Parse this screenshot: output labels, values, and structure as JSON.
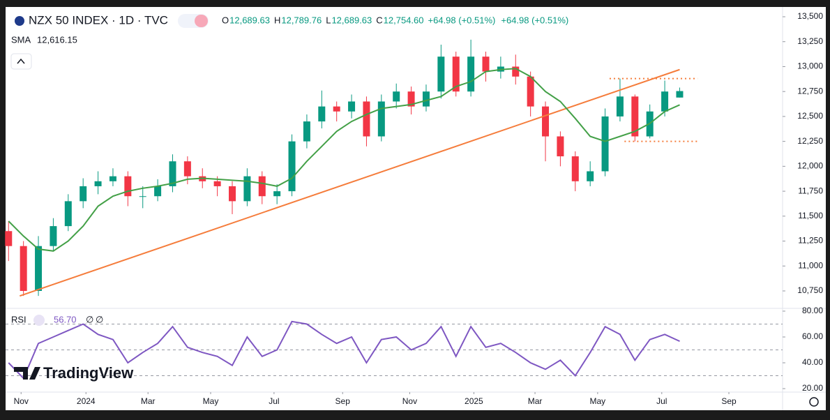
{
  "watermark": "TradingView",
  "chart_data": [
    {
      "type": "candlestick",
      "title": "NZX 50 INDEX · 1D · TVC",
      "ohlc_legend": [
        {
          "key": "O",
          "value": "12,689.63"
        },
        {
          "key": "H",
          "value": "12,789.76"
        },
        {
          "key": "L",
          "value": "12,689.63"
        },
        {
          "key": "C",
          "value": "12,754.60"
        }
      ],
      "change": [
        "+64.98 (+0.51%)",
        "+64.98 (+0.51%)"
      ],
      "categories": [
        null,
        null,
        null,
        null,
        null,
        null,
        null,
        null,
        null,
        null,
        null,
        null,
        null,
        null,
        null,
        null,
        null,
        null,
        null,
        null,
        null,
        null,
        null,
        null,
        null,
        null,
        null,
        null,
        null,
        null,
        null,
        null,
        null,
        null,
        null,
        null,
        null,
        null,
        null,
        null,
        null,
        null,
        null,
        null,
        null,
        null
      ],
      "open": [
        11350,
        11200,
        10750,
        11200,
        11400,
        11650,
        11800,
        11850,
        11900,
        11700,
        11700,
        11800,
        12050,
        11900,
        11850,
        11800,
        11650,
        11900,
        11700,
        11750,
        12250,
        12450,
        12600,
        12550,
        12650,
        12300,
        12650,
        12750,
        12600,
        12750,
        13100,
        12750,
        13100,
        12950,
        13000,
        12900,
        12600,
        12300,
        12100,
        11850,
        11950,
        12500,
        12700,
        12300,
        12550,
        12689.63
      ],
      "high": [
        11450,
        11250,
        11300,
        11480,
        11720,
        11880,
        11950,
        11980,
        11950,
        11800,
        11870,
        12120,
        12100,
        11980,
        11900,
        11850,
        11980,
        11950,
        11820,
        12320,
        12520,
        12760,
        12650,
        12720,
        12700,
        12720,
        12830,
        12800,
        12820,
        13220,
        13150,
        13270,
        13150,
        13100,
        13120,
        12950,
        12650,
        12350,
        12150,
        12050,
        12580,
        12880,
        12720,
        12620,
        12860,
        12789.76
      ],
      "low": [
        11050,
        10700,
        10700,
        11150,
        11350,
        11580,
        11720,
        11800,
        11600,
        11580,
        11650,
        11740,
        11820,
        11780,
        11700,
        11520,
        11600,
        11620,
        11620,
        11700,
        12180,
        12380,
        12450,
        12480,
        12200,
        12250,
        12580,
        12520,
        12550,
        12680,
        12700,
        12700,
        12850,
        12880,
        12820,
        12500,
        12050,
        12000,
        11750,
        11800,
        11900,
        12450,
        12250,
        12280,
        12500,
        12689.63
      ],
      "close": [
        11200,
        10750,
        11200,
        11400,
        11650,
        11800,
        11850,
        11900,
        11700,
        11700,
        11800,
        12050,
        11900,
        11850,
        11800,
        11650,
        11900,
        11700,
        11750,
        12250,
        12450,
        12600,
        12550,
        12650,
        12300,
        12650,
        12750,
        12600,
        12750,
        13100,
        12750,
        13100,
        12950,
        13000,
        12900,
        12600,
        12300,
        12100,
        11850,
        11950,
        12500,
        12700,
        12300,
        12550,
        12750,
        12754.6
      ],
      "up_color": "#089981",
      "down_color": "#f23645",
      "series": [
        {
          "name": "SMA",
          "color": "#43a047",
          "value_label": "12,616.15",
          "values": [
            11450,
            11300,
            11170,
            11150,
            11250,
            11400,
            11600,
            11700,
            11750,
            11780,
            11800,
            11830,
            11870,
            11880,
            11870,
            11860,
            11850,
            11830,
            11800,
            11880,
            12050,
            12200,
            12350,
            12450,
            12520,
            12580,
            12600,
            12620,
            12660,
            12700,
            12800,
            12850,
            12950,
            12970,
            12980,
            12900,
            12750,
            12650,
            12480,
            12300,
            12250,
            12300,
            12350,
            12430,
            12550,
            12616.15
          ]
        }
      ],
      "trendline": {
        "color": "#f57c3b",
        "x": [
          0.75,
          45
        ],
        "values": [
          10700,
          12970
        ]
      },
      "levels": [
        12880,
        12250
      ],
      "levels_color": "#f57c3b",
      "xlim": [
        -0.2,
        51.9
      ],
      "ylim": [
        10589,
        13584
      ],
      "grid": false,
      "yticks": [
        {
          "value": 10750,
          "label": "10,750"
        },
        {
          "value": 11000,
          "label": "11,000"
        },
        {
          "value": 11250,
          "label": "11,250"
        },
        {
          "value": 11500,
          "label": "11,500"
        },
        {
          "value": 11750,
          "label": "11,750"
        },
        {
          "value": 12000,
          "label": "12,000"
        },
        {
          "value": 12250,
          "label": "12,250"
        },
        {
          "value": 12500,
          "label": "12,500"
        },
        {
          "value": 12750,
          "label": "12,750"
        },
        {
          "value": 13000,
          "label": "13,000"
        },
        {
          "value": 13250,
          "label": "13,250"
        },
        {
          "value": 13500,
          "label": "13,500"
        }
      ]
    },
    {
      "type": "line",
      "categories": [
        null,
        null,
        null,
        null,
        null,
        null,
        null,
        null,
        null,
        null,
        null,
        null,
        null,
        null,
        null,
        null,
        null,
        null,
        null,
        null,
        null,
        null,
        null,
        null,
        null,
        null,
        null,
        null,
        null,
        null,
        null,
        null,
        null,
        null,
        null,
        null,
        null,
        null,
        null,
        null,
        null,
        null,
        null,
        null,
        null,
        null
      ],
      "series": [
        {
          "name": "RSI",
          "color": "#7e57c2",
          "value_label": "56.70",
          "params": [
            "∅",
            "∅"
          ],
          "values": [
            40,
            28,
            55,
            60,
            65,
            70,
            62,
            58,
            40,
            48,
            55,
            68,
            52,
            48,
            45,
            38,
            60,
            45,
            50,
            72,
            70,
            62,
            55,
            60,
            40,
            58,
            60,
            50,
            55,
            68,
            45,
            68,
            52,
            55,
            48,
            40,
            35,
            42,
            30,
            48,
            68,
            62,
            42,
            58,
            62,
            56.7
          ]
        }
      ],
      "levels": [
        70,
        50,
        30
      ],
      "xlim": [
        -0.2,
        51.9
      ],
      "ylim": [
        18.4,
        81.6
      ],
      "yticks": [
        {
          "value": 20,
          "label": "20.00"
        },
        {
          "value": 40,
          "label": "40.00"
        },
        {
          "value": 60,
          "label": "60.00"
        },
        {
          "value": 80,
          "label": "80.00"
        }
      ],
      "xticks": [
        {
          "value": 0.84,
          "label": "Nov"
        },
        {
          "value": 5.19,
          "label": "2024"
        },
        {
          "value": 9.35,
          "label": "Mar"
        },
        {
          "value": 13.55,
          "label": "May"
        },
        {
          "value": 17.8,
          "label": "Jul"
        },
        {
          "value": 22.4,
          "label": "Sep"
        },
        {
          "value": 26.9,
          "label": "Nov"
        },
        {
          "value": 31.2,
          "label": "2025"
        },
        {
          "value": 35.3,
          "label": "Mar"
        },
        {
          "value": 39.5,
          "label": "May"
        },
        {
          "value": 43.8,
          "label": "Jul"
        },
        {
          "value": 48.3,
          "label": "Sep"
        }
      ]
    }
  ]
}
